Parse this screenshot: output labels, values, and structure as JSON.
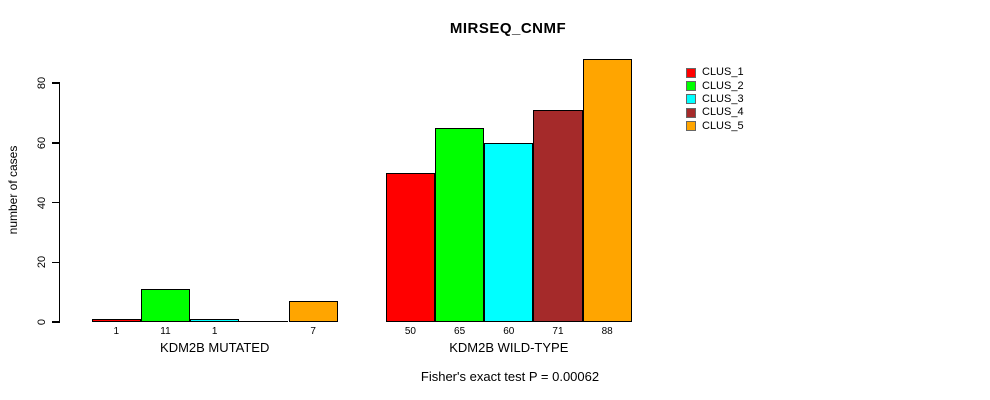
{
  "figure": {
    "title": "MIRSEQ_CNMF",
    "ylabel": "number of cases",
    "footer": "Fisher's exact test P = 0.00062"
  },
  "legend": {
    "items": [
      {
        "label": "CLUS_1",
        "color": "#FF0000"
      },
      {
        "label": "CLUS_2",
        "color": "#00FF00"
      },
      {
        "label": "CLUS_3",
        "color": "#00FFFF"
      },
      {
        "label": "CLUS_4",
        "color": "#A52A2A"
      },
      {
        "label": "CLUS_5",
        "color": "#FFA500"
      }
    ]
  },
  "chart_data": {
    "type": "bar",
    "title": "MIRSEQ_CNMF",
    "xlabel": "",
    "ylabel": "number of cases",
    "annotation": "Fisher's exact test P = 0.00062",
    "series_names": [
      "CLUS_1",
      "CLUS_2",
      "CLUS_3",
      "CLUS_4",
      "CLUS_5"
    ],
    "series_colors": [
      "#FF0000",
      "#00FF00",
      "#00FFFF",
      "#A52A2A",
      "#FFA500"
    ],
    "groups": [
      {
        "label": "KDM2B MUTATED",
        "values": [
          1,
          11,
          1,
          0,
          7
        ],
        "bar_labels": [
          "1",
          "11",
          "1",
          "",
          "7"
        ]
      },
      {
        "label": "KDM2B WILD-TYPE",
        "values": [
          50,
          65,
          60,
          71,
          88
        ],
        "bar_labels": [
          "50",
          "65",
          "60",
          "71",
          "88"
        ]
      }
    ],
    "yticks": [
      0,
      20,
      40,
      60,
      80
    ],
    "ylim": [
      0,
      88
    ],
    "grid": false,
    "legend_position": "top-right"
  }
}
